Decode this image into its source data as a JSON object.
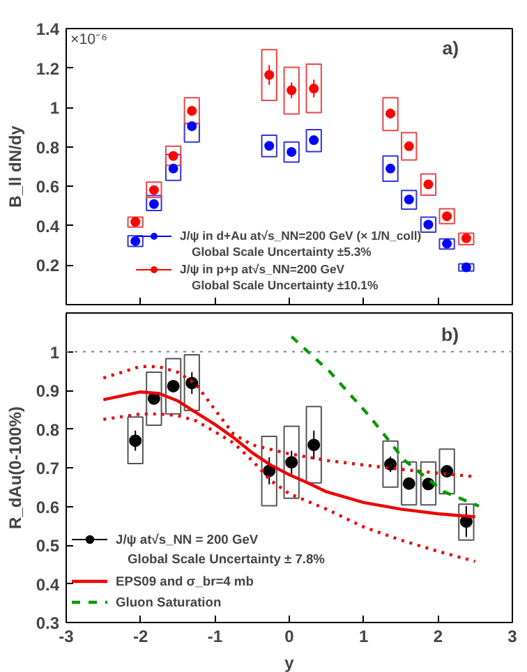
{
  "chart_data": [
    {
      "type": "scatter",
      "ylabel": "B_ll dN/dy",
      "xlim": [
        -3,
        3
      ],
      "xticks": [
        -3,
        -2,
        -1,
        0,
        1,
        2,
        3
      ],
      "ylim": [
        0,
        1.4
      ],
      "yticks": [
        0.2,
        0.4,
        0.6,
        0.8,
        1,
        1.2,
        1.4
      ],
      "tick_labels": "y",
      "grid": false,
      "legend": "bottom",
      "annotations": [
        "a)",
        "Global Scale Uncertainty ±5.3%",
        "Global Scale Uncertainty ±10.1%",
        "×10⁻⁶"
      ],
      "x": [
        -2.07,
        -1.82,
        -1.56,
        -1.31,
        -0.27,
        0.03,
        0.33,
        1.36,
        1.61,
        1.87,
        2.12,
        2.38
      ],
      "series": [
        {
          "type": "bar",
          "color": "#3333dd",
          "base": [
            0.295,
            0.477,
            0.63,
            0.825,
            0.75,
            0.723,
            0.776,
            0.626,
            0.484,
            0.368,
            0.282,
            0.171
          ],
          "values": [
            0.054,
            0.076,
            0.131,
            0.093,
            0.109,
            0.102,
            0.111,
            0.128,
            0.095,
            0.076,
            0.051,
            0.036
          ]
        },
        {
          "type": "bar",
          "color": "#ee4444",
          "base": [
            0.393,
            0.544,
            0.706,
            0.918,
            1.036,
            0.967,
            0.974,
            0.883,
            0.734,
            0.555,
            0.411,
            0.304
          ],
          "values": [
            0.051,
            0.077,
            0.097,
            0.131,
            0.257,
            0.237,
            0.246,
            0.166,
            0.138,
            0.108,
            0.075,
            0.058
          ]
        },
        {
          "marker": "circle",
          "name": "J/ψ in d+Au at√s_NN=200 GeV (× 1/N_coll)",
          "color": "#0000ff",
          "values": [
            0.322,
            0.51,
            0.69,
            0.905,
            0.805,
            0.774,
            0.834,
            0.69,
            0.533,
            0.406,
            0.309,
            0.189
          ],
          "errors": [
            0.01,
            0.01,
            0.012,
            0.02,
            0.015,
            0.012,
            0.015,
            0.012,
            0.01,
            0.01,
            0.008,
            0.008
          ]
        },
        {
          "marker": "circle",
          "name": "J/ψ in p+p at√s_NN=200 GeV",
          "color": "#ff0000",
          "values": [
            0.42,
            0.581,
            0.754,
            0.983,
            1.165,
            1.087,
            1.096,
            0.969,
            0.803,
            0.61,
            0.448,
            0.337
          ],
          "errors": [
            0.015,
            0.015,
            0.015,
            0.025,
            0.05,
            0.04,
            0.045,
            0.025,
            0.02,
            0.015,
            0.015,
            0.02
          ]
        }
      ]
    },
    {
      "type": "scatter",
      "xlabel": "y",
      "ylabel": "R_dAu(0-100%)",
      "xlim": [
        -3,
        3
      ],
      "xticks": [
        -3,
        -2,
        -1,
        0,
        1,
        2,
        3
      ],
      "ylim": [
        0.3,
        1.1
      ],
      "yticks": [
        0.3,
        0.4,
        0.5,
        0.6,
        0.7,
        0.8,
        0.9,
        1
      ],
      "grid": false,
      "legend": "bottom left",
      "annotations": [
        "b)",
        "Global Scale Uncertainty ± 7.8%"
      ],
      "ref_lines": [
        {
          "axis": "y",
          "value": 1,
          "color": "#808080",
          "line_style": "dotted"
        }
      ],
      "x": [
        -2.07,
        -1.82,
        -1.56,
        -1.31,
        -0.27,
        0.03,
        0.33,
        1.36,
        1.61,
        1.87,
        2.12,
        2.38
      ],
      "series": [
        {
          "type": "bar",
          "color": "#555555",
          "base": [
            0.711,
            0.81,
            0.839,
            0.848,
            0.602,
            0.621,
            0.661,
            0.65,
            0.604,
            0.604,
            0.633,
            0.513
          ],
          "values": [
            0.12,
            0.137,
            0.143,
            0.144,
            0.179,
            0.186,
            0.197,
            0.119,
            0.111,
            0.111,
            0.115,
            0.093
          ]
        },
        {
          "marker": "circle",
          "name": "J/ψ at√s_NN = 200 GeV",
          "color": "#000000",
          "values": [
            0.77,
            0.879,
            0.911,
            0.919,
            0.692,
            0.714,
            0.759,
            0.709,
            0.659,
            0.658,
            0.691,
            0.561
          ],
          "errors": [
            0.026,
            0.015,
            0.015,
            0.028,
            0.035,
            0.03,
            0.037,
            0.02,
            0.01,
            0.01,
            0.015,
            0.04
          ]
        },
        {
          "type": "line",
          "name": "EPS09 and σ_br=4 mb",
          "color": "#ee0000",
          "line_style": "solid",
          "x": [
            -2.5,
            -2,
            -1.75,
            -1.5,
            -1.25,
            -1,
            -0.75,
            -0.5,
            -0.25,
            0,
            0.25,
            0.5,
            1,
            1.5,
            2,
            2.5
          ],
          "values": [
            0.876,
            0.896,
            0.892,
            0.873,
            0.842,
            0.812,
            0.778,
            0.739,
            0.707,
            0.682,
            0.661,
            0.638,
            0.61,
            0.593,
            0.581,
            0.573
          ]
        },
        {
          "type": "line",
          "color": "#ee0000",
          "line_style": "dotted",
          "x": [
            -2.5,
            -2,
            -1.75,
            -1.5,
            -1.25,
            -1,
            -0.75,
            -0.5,
            0,
            0.5,
            1,
            1.5,
            2,
            2.5
          ],
          "values": [
            0.932,
            0.962,
            0.961,
            0.947,
            0.915,
            0.85,
            0.787,
            0.759,
            0.736,
            0.719,
            0.707,
            0.696,
            0.686,
            0.677
          ]
        },
        {
          "type": "line",
          "color": "#ee0000",
          "line_style": "dotted",
          "x": [
            -2.5,
            -2,
            -1.75,
            -1.5,
            -1.25,
            -1,
            -0.75,
            -0.5,
            -0.25,
            0,
            0.5,
            1,
            1.5,
            2,
            2.5
          ],
          "values": [
            0.825,
            0.839,
            0.839,
            0.835,
            0.821,
            0.793,
            0.764,
            0.719,
            0.667,
            0.633,
            0.593,
            0.547,
            0.513,
            0.484,
            0.458
          ]
        },
        {
          "type": "line",
          "name": "Gluon Saturation",
          "color": "#009900",
          "line_style": "dashed",
          "x": [
            0.03,
            0.55,
            1.08,
            1.55,
            2.08,
            2.55
          ],
          "values": [
            1.039,
            0.947,
            0.833,
            0.719,
            0.638,
            0.601
          ]
        }
      ]
    }
  ]
}
